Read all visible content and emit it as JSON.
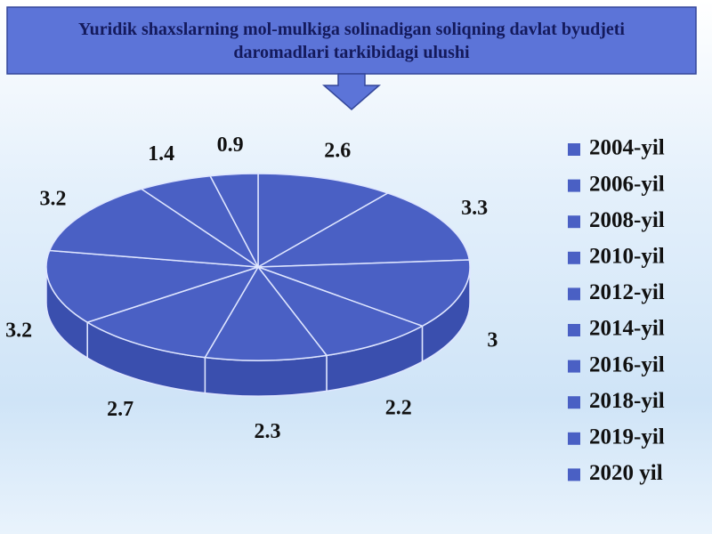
{
  "chart_data": {
    "type": "pie3d",
    "title": "Yuridik shaxslarning mol-mulkiga solinadigan soliqning davlat byudjeti daromadlari tarkibidagi ulushi",
    "categories": [
      "2004-yil",
      "2006-yil",
      "2008-yil",
      "2010-yil",
      "2012-yil",
      "2014-yil",
      "2016-yil",
      "2018-yil",
      "2019-yil",
      "2020 yil"
    ],
    "values": [
      2.6,
      3.3,
      3,
      2.2,
      2.3,
      2.7,
      3.2,
      3.2,
      1.4,
      0.9
    ],
    "color": "#4a60c4",
    "legend": "right"
  }
}
